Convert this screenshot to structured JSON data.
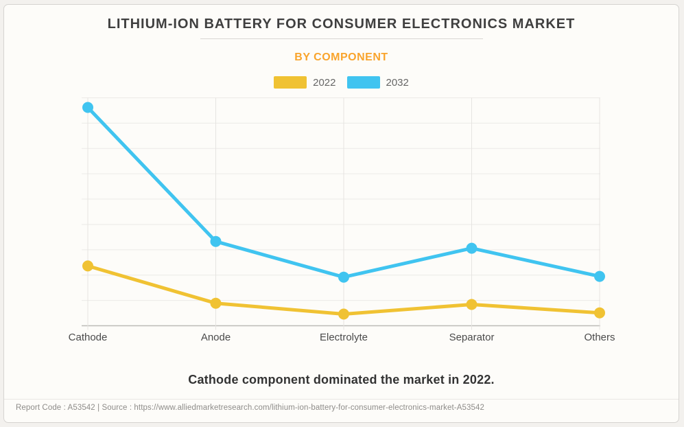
{
  "header": {
    "title": "LITHIUM-ION BATTERY FOR CONSUMER ELECTRONICS MARKET",
    "subtitle": "BY COMPONENT"
  },
  "legend": {
    "items": [
      {
        "label": "2022",
        "color": "#F0C233"
      },
      {
        "label": "2032",
        "color": "#40C4F0"
      }
    ]
  },
  "chart_data": {
    "type": "line",
    "title": "LITHIUM-ION BATTERY FOR CONSUMER ELECTRONICS MARKET",
    "subtitle": "BY COMPONENT",
    "categories": [
      "Cathode",
      "Anode",
      "Electrolyte",
      "Separator",
      "Others"
    ],
    "series": [
      {
        "name": "2022",
        "color": "#F0C233",
        "values": [
          2.36,
          0.89,
          0.46,
          0.84,
          0.51
        ]
      },
      {
        "name": "2032",
        "color": "#40C4F0",
        "values": [
          8.62,
          3.33,
          1.92,
          3.06,
          1.95
        ]
      }
    ],
    "xlabel": "",
    "ylabel": "",
    "ylim": [
      0,
      9
    ],
    "grid": true,
    "legend_position": "top"
  },
  "caption": "Cathode component dominated the market in 2022.",
  "footer": {
    "text": "Report Code : A53542  |  Source : https://www.alliedmarketresearch.com/lithium-ion-battery-for-consumer-electronics-market-A53542"
  },
  "colors": {
    "card_background": "#FDFCF9",
    "page_background": "#F3F1EE",
    "gridline": "#ECEAE7",
    "axis_line": "#BCBAB7",
    "title_text": "#3F3F3F",
    "subtitle_text": "#F9A42C",
    "axis_label_text": "#4A4A4A",
    "footer_text": "#8E8C89"
  }
}
